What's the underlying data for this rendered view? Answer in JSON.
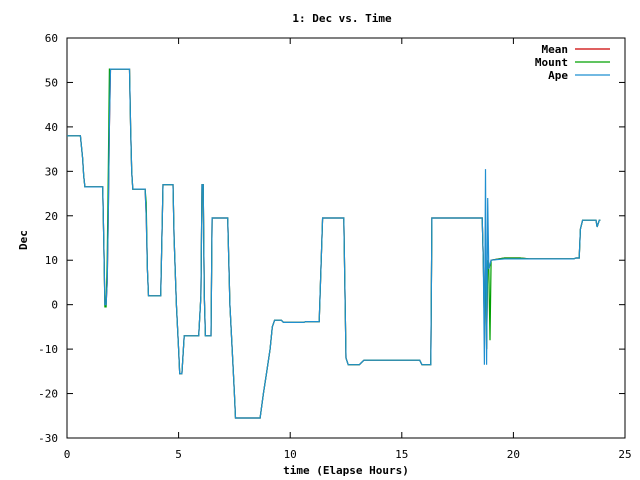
{
  "chart_data": {
    "type": "line",
    "title": "1: Dec vs. Time",
    "xlabel": "time (Elapse Hours)",
    "ylabel": "Dec",
    "xlim": [
      0,
      25
    ],
    "ylim": [
      -30,
      60
    ],
    "xticks": [
      "0",
      "5",
      "10",
      "15",
      "20",
      "25"
    ],
    "yticks": [
      "60",
      "50",
      "40",
      "30",
      "20",
      "10",
      "0",
      "-10",
      "-20",
      "-30"
    ],
    "grid": false,
    "legend_position": "top-right",
    "series": [
      {
        "name": "Mean",
        "color": "#cc0000",
        "points": [
          [
            0,
            38
          ],
          [
            0.6,
            38
          ],
          [
            0.7,
            33
          ],
          [
            0.75,
            29
          ],
          [
            0.8,
            26.5
          ],
          [
            1.5,
            26.5
          ],
          [
            1.6,
            26.5
          ],
          [
            1.65,
            14
          ],
          [
            1.7,
            0
          ],
          [
            1.75,
            0
          ],
          [
            1.8,
            5
          ],
          [
            1.85,
            20
          ],
          [
            1.9,
            40
          ],
          [
            1.95,
            53
          ],
          [
            2.1,
            53
          ],
          [
            2.8,
            53
          ],
          [
            2.85,
            40
          ],
          [
            2.9,
            30
          ],
          [
            2.95,
            26
          ],
          [
            3.5,
            26
          ],
          [
            3.55,
            20
          ],
          [
            3.6,
            8
          ],
          [
            3.65,
            2
          ],
          [
            4.2,
            2
          ],
          [
            4.3,
            27
          ],
          [
            4.75,
            27
          ],
          [
            4.8,
            15
          ],
          [
            4.9,
            0
          ],
          [
            5.0,
            -10
          ],
          [
            5.05,
            -15.5
          ],
          [
            5.15,
            -15.5
          ],
          [
            5.25,
            -7
          ],
          [
            5.9,
            -7
          ],
          [
            6.0,
            2
          ],
          [
            6.05,
            27
          ],
          [
            6.1,
            27
          ],
          [
            6.15,
            2
          ],
          [
            6.2,
            -7
          ],
          [
            6.45,
            -7
          ],
          [
            6.5,
            19.5
          ],
          [
            7.2,
            19.5
          ],
          [
            7.3,
            0
          ],
          [
            7.45,
            -15
          ],
          [
            7.5,
            -20
          ],
          [
            7.55,
            -25.5
          ],
          [
            8.65,
            -25.5
          ],
          [
            8.8,
            -20
          ],
          [
            8.95,
            -15
          ],
          [
            9.1,
            -10
          ],
          [
            9.2,
            -5
          ],
          [
            9.3,
            -3.5
          ],
          [
            9.6,
            -3.5
          ],
          [
            9.7,
            -4
          ],
          [
            10.6,
            -4
          ],
          [
            10.7,
            -3.8
          ],
          [
            11.3,
            -3.8
          ],
          [
            11.45,
            19.5
          ],
          [
            12.4,
            19.5
          ],
          [
            12.5,
            -12
          ],
          [
            12.6,
            -13.5
          ],
          [
            13.1,
            -13.5
          ],
          [
            13.2,
            -13
          ],
          [
            13.3,
            -12.5
          ],
          [
            15.8,
            -12.5
          ],
          [
            15.9,
            -13.5
          ],
          [
            16.3,
            -13.5
          ],
          [
            16.35,
            19.5
          ],
          [
            18.6,
            19.5
          ],
          [
            18.65,
            10
          ],
          [
            18.7,
            -5
          ],
          [
            18.75,
            12
          ],
          [
            18.8,
            -10
          ],
          [
            18.85,
            10
          ],
          [
            18.9,
            8
          ],
          [
            19.0,
            10
          ],
          [
            19.6,
            10.5
          ],
          [
            20.3,
            10.5
          ],
          [
            20.7,
            10.3
          ],
          [
            22.7,
            10.3
          ],
          [
            22.8,
            10.5
          ],
          [
            22.95,
            10.5
          ],
          [
            23.0,
            17
          ],
          [
            23.1,
            19
          ],
          [
            23.7,
            19
          ],
          [
            23.75,
            17.5
          ],
          [
            23.85,
            19
          ],
          [
            23.9,
            19
          ]
        ]
      },
      {
        "name": "Mount",
        "color": "#00a000",
        "points": [
          [
            0,
            38
          ],
          [
            0.6,
            38
          ],
          [
            0.7,
            33
          ],
          [
            0.75,
            29
          ],
          [
            0.8,
            26.5
          ],
          [
            1.5,
            26.5
          ],
          [
            1.6,
            26.5
          ],
          [
            1.65,
            14
          ],
          [
            1.7,
            -0.5
          ],
          [
            1.75,
            -0.5
          ],
          [
            1.8,
            10
          ],
          [
            1.85,
            30
          ],
          [
            1.9,
            53
          ],
          [
            1.95,
            53
          ],
          [
            2.1,
            53
          ],
          [
            2.8,
            53
          ],
          [
            2.85,
            40
          ],
          [
            2.9,
            30
          ],
          [
            2.95,
            26
          ],
          [
            3.5,
            26
          ],
          [
            3.55,
            23
          ],
          [
            3.6,
            8
          ],
          [
            3.65,
            2
          ],
          [
            4.2,
            2
          ],
          [
            4.3,
            27
          ],
          [
            4.75,
            27
          ],
          [
            4.8,
            15
          ],
          [
            4.9,
            0
          ],
          [
            5.0,
            -10
          ],
          [
            5.05,
            -15.5
          ],
          [
            5.15,
            -15.5
          ],
          [
            5.25,
            -7
          ],
          [
            5.9,
            -7
          ],
          [
            6.0,
            2
          ],
          [
            6.05,
            27
          ],
          [
            6.1,
            27
          ],
          [
            6.15,
            2
          ],
          [
            6.2,
            -7
          ],
          [
            6.45,
            -7
          ],
          [
            6.5,
            19.5
          ],
          [
            7.2,
            19.5
          ],
          [
            7.3,
            0
          ],
          [
            7.45,
            -15
          ],
          [
            7.5,
            -20
          ],
          [
            7.55,
            -25.5
          ],
          [
            8.65,
            -25.5
          ],
          [
            8.8,
            -20
          ],
          [
            8.95,
            -15
          ],
          [
            9.1,
            -10
          ],
          [
            9.2,
            -5
          ],
          [
            9.3,
            -3.5
          ],
          [
            9.6,
            -3.5
          ],
          [
            9.7,
            -4
          ],
          [
            10.6,
            -4
          ],
          [
            10.7,
            -3.8
          ],
          [
            11.3,
            -3.8
          ],
          [
            11.45,
            19.5
          ],
          [
            12.4,
            19.5
          ],
          [
            12.5,
            -12
          ],
          [
            12.6,
            -13.5
          ],
          [
            13.1,
            -13.5
          ],
          [
            13.2,
            -13
          ],
          [
            13.3,
            -12.5
          ],
          [
            15.8,
            -12.5
          ],
          [
            15.9,
            -13.5
          ],
          [
            16.3,
            -13.5
          ],
          [
            16.35,
            19.5
          ],
          [
            18.6,
            19.5
          ],
          [
            18.65,
            10
          ],
          [
            18.7,
            -5
          ],
          [
            18.75,
            12
          ],
          [
            18.8,
            -10
          ],
          [
            18.85,
            10
          ],
          [
            18.9,
            8
          ],
          [
            18.95,
            -8
          ],
          [
            19.0,
            10
          ],
          [
            19.6,
            10.5
          ],
          [
            20.3,
            10.5
          ],
          [
            20.7,
            10.3
          ],
          [
            22.7,
            10.3
          ],
          [
            22.8,
            10.5
          ],
          [
            22.95,
            10.5
          ],
          [
            23.0,
            17
          ],
          [
            23.1,
            19
          ],
          [
            23.7,
            19
          ],
          [
            23.75,
            17.5
          ],
          [
            23.85,
            19
          ],
          [
            23.9,
            19
          ]
        ]
      },
      {
        "name": "Ape",
        "color": "#1f8fd0",
        "points": [
          [
            0,
            38
          ],
          [
            0.6,
            38
          ],
          [
            0.7,
            33
          ],
          [
            0.75,
            29
          ],
          [
            0.8,
            26.5
          ],
          [
            1.5,
            26.5
          ],
          [
            1.6,
            26.5
          ],
          [
            1.65,
            14
          ],
          [
            1.7,
            0
          ],
          [
            1.75,
            0
          ],
          [
            1.8,
            5
          ],
          [
            1.85,
            20
          ],
          [
            1.9,
            40
          ],
          [
            1.95,
            53
          ],
          [
            2.1,
            53
          ],
          [
            2.8,
            53
          ],
          [
            2.85,
            40
          ],
          [
            2.9,
            30
          ],
          [
            2.95,
            26
          ],
          [
            3.5,
            26
          ],
          [
            3.55,
            20
          ],
          [
            3.6,
            8
          ],
          [
            3.65,
            2
          ],
          [
            4.2,
            2
          ],
          [
            4.3,
            27
          ],
          [
            4.75,
            27
          ],
          [
            4.8,
            15
          ],
          [
            4.9,
            0
          ],
          [
            5.0,
            -10
          ],
          [
            5.05,
            -15.5
          ],
          [
            5.15,
            -15.5
          ],
          [
            5.25,
            -7
          ],
          [
            5.9,
            -7
          ],
          [
            6.0,
            2
          ],
          [
            6.05,
            27
          ],
          [
            6.1,
            27
          ],
          [
            6.15,
            2
          ],
          [
            6.2,
            -7
          ],
          [
            6.45,
            -7
          ],
          [
            6.5,
            19.5
          ],
          [
            7.2,
            19.5
          ],
          [
            7.3,
            0
          ],
          [
            7.45,
            -15
          ],
          [
            7.5,
            -20
          ],
          [
            7.55,
            -25.5
          ],
          [
            8.65,
            -25.5
          ],
          [
            8.8,
            -20
          ],
          [
            8.95,
            -15
          ],
          [
            9.1,
            -10
          ],
          [
            9.2,
            -5
          ],
          [
            9.3,
            -3.5
          ],
          [
            9.6,
            -3.5
          ],
          [
            9.7,
            -4
          ],
          [
            10.6,
            -4
          ],
          [
            10.7,
            -3.8
          ],
          [
            11.3,
            -3.8
          ],
          [
            11.45,
            19.5
          ],
          [
            12.4,
            19.5
          ],
          [
            12.5,
            -12
          ],
          [
            12.6,
            -13.5
          ],
          [
            13.1,
            -13.5
          ],
          [
            13.2,
            -13
          ],
          [
            13.3,
            -12.5
          ],
          [
            15.8,
            -12.5
          ],
          [
            15.9,
            -13.5
          ],
          [
            16.3,
            -13.5
          ],
          [
            16.35,
            19.5
          ],
          [
            18.6,
            19.5
          ],
          [
            18.65,
            10
          ],
          [
            18.7,
            -13.5
          ],
          [
            18.75,
            30.5
          ],
          [
            18.8,
            -13.5
          ],
          [
            18.85,
            24
          ],
          [
            18.9,
            8
          ],
          [
            19.0,
            10
          ],
          [
            19.6,
            10.3
          ],
          [
            20.3,
            10.3
          ],
          [
            20.7,
            10.3
          ],
          [
            22.7,
            10.3
          ],
          [
            22.8,
            10.5
          ],
          [
            22.95,
            10.5
          ],
          [
            23.0,
            17
          ],
          [
            23.1,
            19
          ],
          [
            23.7,
            19
          ],
          [
            23.75,
            17.5
          ],
          [
            23.85,
            19
          ],
          [
            23.9,
            19
          ]
        ]
      }
    ]
  }
}
